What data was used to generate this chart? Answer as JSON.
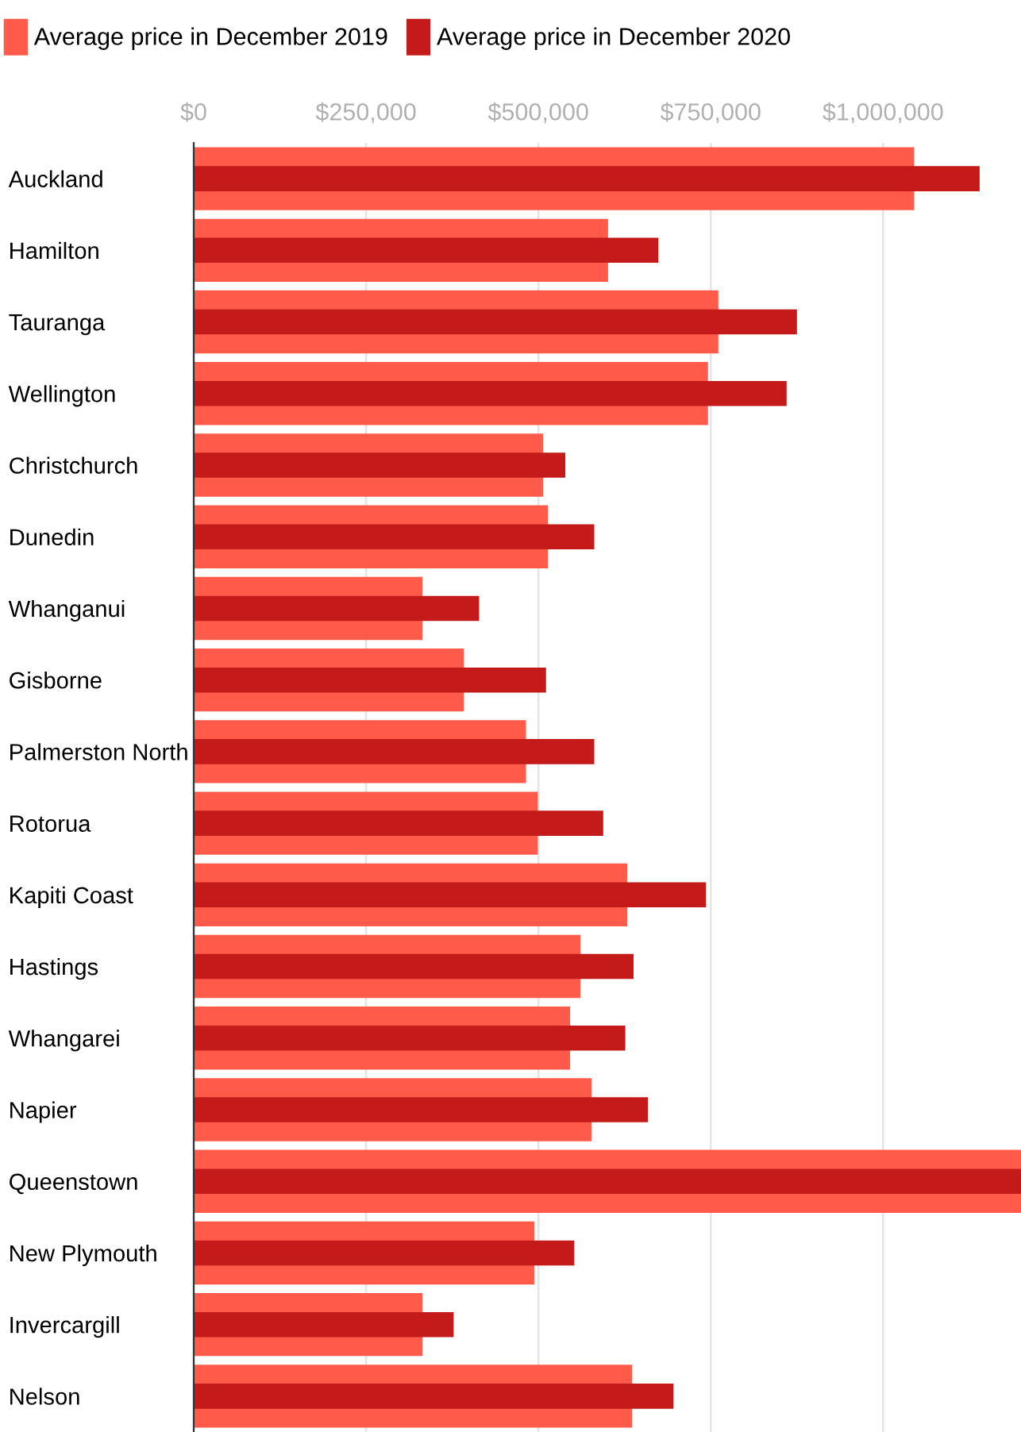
{
  "chart_data": {
    "type": "bar",
    "orientation": "horizontal",
    "categories": [
      "Auckland",
      "Hamilton",
      "Tauranga",
      "Wellington",
      "Christchurch",
      "Dunedin",
      "Whanganui",
      "Gisborne",
      "Palmerston North",
      "Rotorua",
      "Kapiti Coast",
      "Hastings",
      "Whangarei",
      "Napier",
      "Queenstown",
      "New Plymouth",
      "Invercargill",
      "Nelson"
    ],
    "series": [
      {
        "name": "Average price in December 2019",
        "color": "#ff5a4a",
        "values": [
          1045000,
          601000,
          761000,
          746000,
          507000,
          514000,
          332000,
          392000,
          482000,
          499000,
          629000,
          561000,
          546000,
          577000,
          1200000,
          494000,
          332000,
          636000
        ]
      },
      {
        "name": "Average price in December 2020",
        "color": "#c41a1a",
        "values": [
          1140000,
          674000,
          875000,
          860000,
          539000,
          581000,
          414000,
          511000,
          581000,
          594000,
          743000,
          638000,
          626000,
          659000,
          1200000,
          552000,
          377000,
          696000
        ]
      }
    ],
    "xlim": [
      0,
      1200000
    ],
    "xticks": [
      {
        "value": 0,
        "label": "$0"
      },
      {
        "value": 250000,
        "label": "$250,000"
      },
      {
        "value": 500000,
        "label": "$500,000"
      },
      {
        "value": 750000,
        "label": "$750,000"
      },
      {
        "value": 1000000,
        "label": "$1,000,000"
      }
    ],
    "grid": "x",
    "legend": "top left"
  }
}
